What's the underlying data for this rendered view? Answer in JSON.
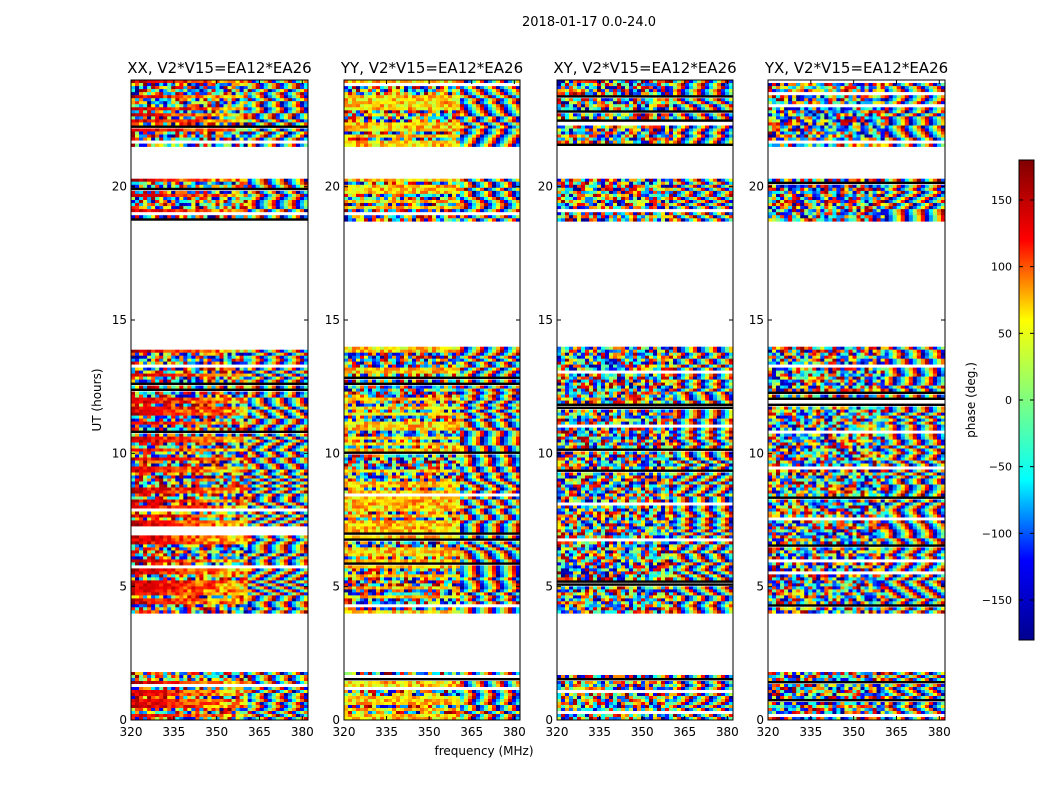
{
  "figure": {
    "suptitle": "2018-01-17 0.0-24.0"
  },
  "chart_data": [
    {
      "type": "heatmap",
      "title": "XX, V2*V15=EA12*EA26",
      "xlabel": "",
      "ylabel": "UT (hours)",
      "xlim": [
        320,
        382
      ],
      "ylim": [
        0,
        24
      ],
      "xticks": [
        320,
        335,
        350,
        365,
        380
      ],
      "yticks": [
        0,
        5,
        10,
        15,
        20
      ],
      "value": "phase (deg.)",
      "observed_ut_ranges": [
        [
          0.0,
          1.8
        ],
        [
          4.0,
          14.0
        ],
        [
          18.7,
          20.3
        ],
        [
          21.5,
          24.0
        ]
      ]
    },
    {
      "type": "heatmap",
      "title": "YY, V2*V15=EA12*EA26",
      "xlabel": "frequency (MHz)",
      "ylabel": "",
      "xlim": [
        320,
        382
      ],
      "ylim": [
        0,
        24
      ],
      "xticks": [
        320,
        335,
        350,
        365,
        380
      ],
      "yticks": [
        0,
        5,
        10,
        15,
        20
      ],
      "value": "phase (deg.)",
      "observed_ut_ranges": [
        [
          0.0,
          1.8
        ],
        [
          4.0,
          14.0
        ],
        [
          18.7,
          20.3
        ],
        [
          21.5,
          24.0
        ]
      ]
    },
    {
      "type": "heatmap",
      "title": "XY, V2*V15=EA12*EA26",
      "xlabel": "",
      "ylabel": "",
      "xlim": [
        320,
        382
      ],
      "ylim": [
        0,
        24
      ],
      "xticks": [
        320,
        335,
        350,
        365,
        380
      ],
      "yticks": [
        0,
        5,
        10,
        15,
        20
      ],
      "value": "phase (deg.)",
      "observed_ut_ranges": [
        [
          0.0,
          1.8
        ],
        [
          4.0,
          14.0
        ],
        [
          18.7,
          20.3
        ],
        [
          21.5,
          24.0
        ]
      ]
    },
    {
      "type": "heatmap",
      "title": "YX, V2*V15=EA12*EA26",
      "xlabel": "",
      "ylabel": "",
      "xlim": [
        320,
        382
      ],
      "ylim": [
        0,
        24
      ],
      "xticks": [
        320,
        335,
        350,
        365,
        380
      ],
      "yticks": [
        0,
        5,
        10,
        15,
        20
      ],
      "value": "phase (deg.)",
      "observed_ut_ranges": [
        [
          0.0,
          1.8
        ],
        [
          4.0,
          14.0
        ],
        [
          18.7,
          20.3
        ],
        [
          21.5,
          24.0
        ]
      ]
    }
  ],
  "colorbar": {
    "label": "phase (deg.)",
    "range": [
      -180,
      180
    ],
    "ticks": [
      150,
      100,
      50,
      0,
      -50,
      -100,
      -150
    ],
    "tick_labels": [
      "150",
      "100",
      "50",
      "0",
      "−50",
      "−100",
      "−150"
    ],
    "colormap": "jet",
    "colors": [
      "#00008f",
      "#0000ff",
      "#00ffff",
      "#7fff7f",
      "#ffff00",
      "#ff0000",
      "#800000"
    ]
  }
}
